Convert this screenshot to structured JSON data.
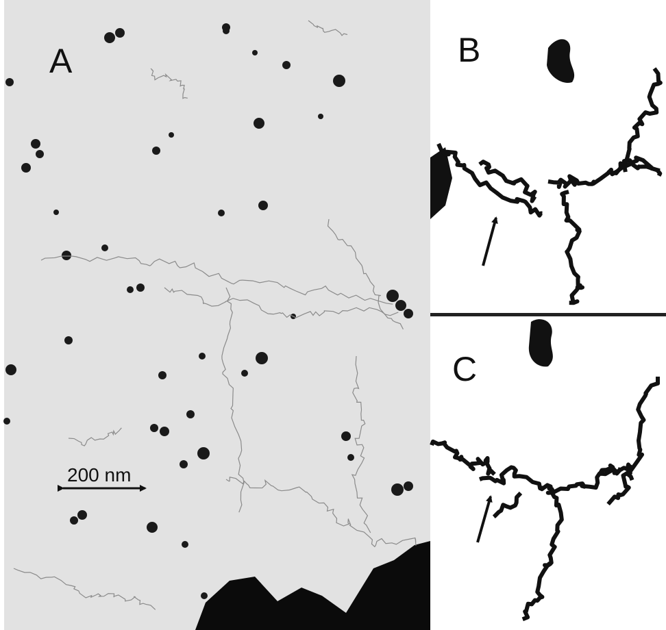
{
  "panels": [
    {
      "label": "A",
      "scale_bar": "200 nm"
    },
    {
      "label": "B"
    },
    {
      "label": "C"
    }
  ]
}
